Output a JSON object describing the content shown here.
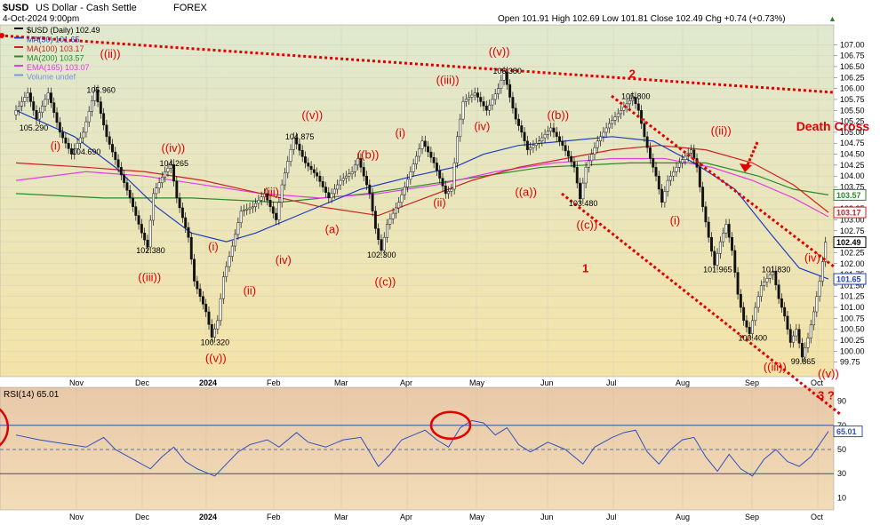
{
  "chart_data": {
    "type": "candlestick",
    "header": {
      "symbol": "$USD",
      "name": "US Dollar - Cash Settle",
      "exchange": "FOREX",
      "date": "4-Oct-2024 9:00pm",
      "ohlc": "Open 101.91  High 102.69  Low 101.81  Close 102.49  Chg +0.74 (+0.73%)",
      "ohlc_arrow": "▲"
    },
    "legend": [
      {
        "label": "$USD (Daily) 102.49",
        "color": "#000000"
      },
      {
        "label": "MA(50) 101.65",
        "color": "#1f3fbf"
      },
      {
        "label": "MA(100) 103.17",
        "color": "#cc2222"
      },
      {
        "label": "MA(200) 103.57",
        "color": "#2a8a2a"
      },
      {
        "label": "EMA(165) 103.07",
        "color": "#e040e0"
      },
      {
        "label": "Volume undef",
        "color": "#7799dd"
      }
    ],
    "price_axis": {
      "min": 99.5,
      "max": 107.25,
      "ticks": [
        "107.00",
        "106.75",
        "106.50",
        "106.25",
        "106.00",
        "105.75",
        "105.50",
        "105.25",
        "105.00",
        "104.75",
        "104.50",
        "104.25",
        "104.00",
        "103.75",
        "103.50",
        "103.25",
        "103.00",
        "102.75",
        "102.50",
        "102.25",
        "102.00",
        "101.75",
        "101.50",
        "101.25",
        "101.00",
        "100.75",
        "100.50",
        "100.25",
        "100.00",
        "99.75"
      ]
    },
    "value_badges": [
      {
        "label": "103.57",
        "value": 103.57,
        "color": "#2a8a2a"
      },
      {
        "label": "103.17",
        "value": 103.17,
        "color": "#cc2222"
      },
      {
        "label": "102.49",
        "value": 102.49,
        "color": "#000000"
      },
      {
        "label": "101.65",
        "value": 101.65,
        "color": "#1f3fbf"
      }
    ],
    "x_labels": [
      "Nov",
      "Dec",
      "2024",
      "Feb",
      "Mar",
      "Apr",
      "May",
      "Jun",
      "Jul",
      "Aug",
      "Sep",
      "Oct"
    ],
    "price_path": [
      [
        0,
        105.4
      ],
      [
        5,
        105.9
      ],
      [
        8,
        105.3
      ],
      [
        12,
        105.9
      ],
      [
        16,
        105.0
      ],
      [
        20,
        104.5
      ],
      [
        24,
        105.0
      ],
      [
        28,
        105.96
      ],
      [
        32,
        104.9
      ],
      [
        36,
        104.2
      ],
      [
        40,
        103.5
      ],
      [
        44,
        102.7
      ],
      [
        46,
        102.38
      ],
      [
        48,
        103.6
      ],
      [
        52,
        104.1
      ],
      [
        54,
        104.265
      ],
      [
        56,
        103.5
      ],
      [
        60,
        102.6
      ],
      [
        62,
        101.6
      ],
      [
        66,
        100.9
      ],
      [
        68,
        100.32
      ],
      [
        70,
        100.7
      ],
      [
        72,
        101.7
      ],
      [
        75,
        102.4
      ],
      [
        78,
        103.2
      ],
      [
        82,
        103.3
      ],
      [
        86,
        103.6
      ],
      [
        90,
        103.0
      ],
      [
        92,
        103.8
      ],
      [
        96,
        104.875
      ],
      [
        100,
        104.3
      ],
      [
        104,
        104.0
      ],
      [
        108,
        103.5
      ],
      [
        112,
        103.9
      ],
      [
        116,
        104.1
      ],
      [
        118,
        104.4
      ],
      [
        122,
        103.6
      ],
      [
        124,
        102.8
      ],
      [
        126,
        102.3
      ],
      [
        128,
        102.9
      ],
      [
        132,
        103.4
      ],
      [
        136,
        104.1
      ],
      [
        140,
        104.8
      ],
      [
        144,
        104.3
      ],
      [
        148,
        103.6
      ],
      [
        150,
        103.7
      ],
      [
        152,
        104.9
      ],
      [
        154,
        105.7
      ],
      [
        158,
        105.9
      ],
      [
        162,
        105.5
      ],
      [
        166,
        106.0
      ],
      [
        168,
        106.38
      ],
      [
        170,
        105.8
      ],
      [
        172,
        105.3
      ],
      [
        174,
        105.0
      ],
      [
        176,
        104.6
      ],
      [
        180,
        104.8
      ],
      [
        184,
        105.1
      ],
      [
        188,
        104.7
      ],
      [
        192,
        104.2
      ],
      [
        194,
        103.48
      ],
      [
        196,
        104.2
      ],
      [
        200,
        104.8
      ],
      [
        204,
        105.2
      ],
      [
        208,
        105.5
      ],
      [
        212,
        105.8
      ],
      [
        214,
        105.5
      ],
      [
        216,
        104.9
      ],
      [
        218,
        104.4
      ],
      [
        220,
        104.0
      ],
      [
        222,
        103.4
      ],
      [
        224,
        103.9
      ],
      [
        228,
        104.3
      ],
      [
        232,
        104.6
      ],
      [
        234,
        104.2
      ],
      [
        236,
        103.3
      ],
      [
        238,
        102.6
      ],
      [
        240,
        101.965
      ],
      [
        242,
        102.5
      ],
      [
        244,
        102.9
      ],
      [
        246,
        102.3
      ],
      [
        248,
        101.3
      ],
      [
        250,
        100.7
      ],
      [
        252,
        100.4
      ],
      [
        254,
        101.0
      ],
      [
        256,
        101.5
      ],
      [
        260,
        101.83
      ],
      [
        262,
        101.2
      ],
      [
        264,
        100.8
      ],
      [
        266,
        100.2
      ],
      [
        268,
        100.5
      ],
      [
        270,
        99.865
      ],
      [
        272,
        100.3
      ],
      [
        274,
        100.9
      ],
      [
        276,
        101.6
      ],
      [
        278,
        102.49
      ]
    ],
    "ma50": [
      [
        0,
        105.5
      ],
      [
        20,
        104.9
      ],
      [
        34,
        104.2
      ],
      [
        48,
        103.3
      ],
      [
        60,
        102.7
      ],
      [
        72,
        102.5
      ],
      [
        82,
        102.7
      ],
      [
        100,
        103.2
      ],
      [
        118,
        103.7
      ],
      [
        136,
        104.0
      ],
      [
        150,
        104.2
      ],
      [
        160,
        104.5
      ],
      [
        172,
        104.7
      ],
      [
        188,
        104.8
      ],
      [
        204,
        104.9
      ],
      [
        218,
        104.8
      ],
      [
        232,
        104.3
      ],
      [
        246,
        103.7
      ],
      [
        258,
        102.7
      ],
      [
        268,
        101.9
      ],
      [
        278,
        101.65
      ]
    ],
    "ma100": [
      [
        0,
        104.3
      ],
      [
        24,
        104.2
      ],
      [
        44,
        104.1
      ],
      [
        64,
        103.9
      ],
      [
        84,
        103.6
      ],
      [
        104,
        103.3
      ],
      [
        124,
        103.1
      ],
      [
        140,
        103.5
      ],
      [
        156,
        103.9
      ],
      [
        172,
        104.2
      ],
      [
        188,
        104.4
      ],
      [
        204,
        104.6
      ],
      [
        220,
        104.7
      ],
      [
        236,
        104.6
      ],
      [
        252,
        104.3
      ],
      [
        266,
        103.8
      ],
      [
        278,
        103.17
      ]
    ],
    "ma200": [
      [
        0,
        103.6
      ],
      [
        30,
        103.5
      ],
      [
        60,
        103.5
      ],
      [
        90,
        103.4
      ],
      [
        120,
        103.6
      ],
      [
        150,
        103.9
      ],
      [
        180,
        104.2
      ],
      [
        210,
        104.3
      ],
      [
        236,
        104.3
      ],
      [
        254,
        104.0
      ],
      [
        266,
        103.7
      ],
      [
        278,
        103.57
      ]
    ],
    "ema165": [
      [
        0,
        103.9
      ],
      [
        24,
        104.1
      ],
      [
        44,
        104.0
      ],
      [
        64,
        103.8
      ],
      [
        84,
        103.6
      ],
      [
        104,
        103.5
      ],
      [
        124,
        103.6
      ],
      [
        144,
        103.8
      ],
      [
        164,
        104.1
      ],
      [
        184,
        104.3
      ],
      [
        204,
        104.4
      ],
      [
        222,
        104.4
      ],
      [
        238,
        104.2
      ],
      [
        252,
        103.9
      ],
      [
        266,
        103.5
      ],
      [
        278,
        103.07
      ]
    ],
    "price_labels": [
      {
        "label": "105.290",
        "x": 6,
        "y": 105.1
      },
      {
        "label": "104.690",
        "x": 24,
        "y": 104.55
      },
      {
        "label": "105.960",
        "x": 29,
        "y": 105.96
      },
      {
        "label": "102.380",
        "x": 46,
        "y": 102.3
      },
      {
        "label": "104.265",
        "x": 54,
        "y": 104.29
      },
      {
        "label": "100.320",
        "x": 68,
        "y": 100.2
      },
      {
        "label": "104.875",
        "x": 97,
        "y": 104.9
      },
      {
        "label": "102.300",
        "x": 125,
        "y": 102.2
      },
      {
        "label": "106.380",
        "x": 168,
        "y": 106.4
      },
      {
        "label": "103.480",
        "x": 194,
        "y": 103.38
      },
      {
        "label": "105.800",
        "x": 212,
        "y": 105.82
      },
      {
        "label": "101.965",
        "x": 240,
        "y": 101.86
      },
      {
        "label": "101.830",
        "x": 260,
        "y": 101.86
      },
      {
        "label": "100.400",
        "x": 252,
        "y": 100.3
      },
      {
        "label": "99.865",
        "x": 270,
        "y": 99.76
      }
    ],
    "wave_labels": [
      {
        "label": "((ii))",
        "x": 33,
        "y": 106.7
      },
      {
        "label": "(i)",
        "x": 16,
        "y": 104.6
      },
      {
        "label": "((iii))",
        "x": 46,
        "y": 101.6
      },
      {
        "label": "((iv))",
        "x": 54,
        "y": 104.55
      },
      {
        "label": "((v))",
        "x": 69,
        "y": 99.75
      },
      {
        "label": "(i)",
        "x": 70,
        "y": 102.3
      },
      {
        "label": "(ii)",
        "x": 82,
        "y": 101.3
      },
      {
        "label": "(iii)",
        "x": 89,
        "y": 103.55
      },
      {
        "label": "(iv)",
        "x": 93,
        "y": 102.0
      },
      {
        "label": "((v))",
        "x": 102,
        "y": 105.3
      },
      {
        "label": "((b))",
        "x": 121,
        "y": 104.4
      },
      {
        "label": "(a)",
        "x": 110,
        "y": 102.7
      },
      {
        "label": "((c))",
        "x": 127,
        "y": 101.5
      },
      {
        "label": "(i)",
        "x": 134,
        "y": 104.9
      },
      {
        "label": "((iii))",
        "x": 148,
        "y": 106.1
      },
      {
        "label": "(ii)",
        "x": 147,
        "y": 103.3
      },
      {
        "label": "((v))",
        "x": 166,
        "y": 106.75
      },
      {
        "label": "(iv)",
        "x": 161,
        "y": 105.05
      },
      {
        "label": "((b))",
        "x": 186,
        "y": 105.3
      },
      {
        "label": "((a))",
        "x": 175,
        "y": 103.55
      },
      {
        "label": "((c))",
        "x": 196,
        "y": 102.8
      },
      {
        "label": "1",
        "x": 198,
        "y": 101.8
      },
      {
        "label": "2",
        "x": 214,
        "y": 106.25
      },
      {
        "label": "((ii))",
        "x": 242,
        "y": 104.95
      },
      {
        "label": "(i)",
        "x": 228,
        "y": 102.9
      },
      {
        "label": "((iii))",
        "x": 260,
        "y": 99.55
      },
      {
        "label": "(iv)",
        "x": 274,
        "y": 102.05
      },
      {
        "label": "((v))",
        "x": 292,
        "y": 99.4
      },
      {
        "label": "3 ?",
        "x": 282,
        "y": 98.9
      }
    ],
    "annotation": {
      "label": "Death Cross",
      "x": 270,
      "y": 105.1
    },
    "rsi": {
      "label": "RSI(14) 65.01",
      "value_badge": "65.01",
      "min": 0,
      "max": 100,
      "ticks": [
        "90",
        "70",
        "50",
        "30",
        "10"
      ],
      "values": [
        [
          0,
          62
        ],
        [
          8,
          58
        ],
        [
          16,
          55
        ],
        [
          24,
          52
        ],
        [
          30,
          60
        ],
        [
          34,
          50
        ],
        [
          40,
          42
        ],
        [
          46,
          34
        ],
        [
          50,
          44
        ],
        [
          54,
          52
        ],
        [
          58,
          40
        ],
        [
          62,
          34
        ],
        [
          66,
          30
        ],
        [
          68,
          28
        ],
        [
          72,
          38
        ],
        [
          76,
          48
        ],
        [
          80,
          54
        ],
        [
          86,
          58
        ],
        [
          90,
          52
        ],
        [
          96,
          64
        ],
        [
          100,
          56
        ],
        [
          106,
          52
        ],
        [
          112,
          58
        ],
        [
          118,
          60
        ],
        [
          124,
          36
        ],
        [
          128,
          46
        ],
        [
          132,
          58
        ],
        [
          136,
          62
        ],
        [
          140,
          66
        ],
        [
          144,
          58
        ],
        [
          148,
          52
        ],
        [
          152,
          68
        ],
        [
          156,
          74
        ],
        [
          160,
          72
        ],
        [
          164,
          62
        ],
        [
          168,
          68
        ],
        [
          172,
          54
        ],
        [
          176,
          48
        ],
        [
          182,
          56
        ],
        [
          188,
          50
        ],
        [
          194,
          38
        ],
        [
          198,
          52
        ],
        [
          204,
          60
        ],
        [
          208,
          64
        ],
        [
          212,
          66
        ],
        [
          216,
          48
        ],
        [
          220,
          38
        ],
        [
          224,
          50
        ],
        [
          228,
          58
        ],
        [
          232,
          60
        ],
        [
          236,
          44
        ],
        [
          240,
          32
        ],
        [
          244,
          46
        ],
        [
          248,
          34
        ],
        [
          252,
          28
        ],
        [
          256,
          42
        ],
        [
          260,
          50
        ],
        [
          264,
          40
        ],
        [
          268,
          36
        ],
        [
          272,
          44
        ],
        [
          276,
          58
        ],
        [
          278,
          65.01
        ]
      ]
    }
  }
}
